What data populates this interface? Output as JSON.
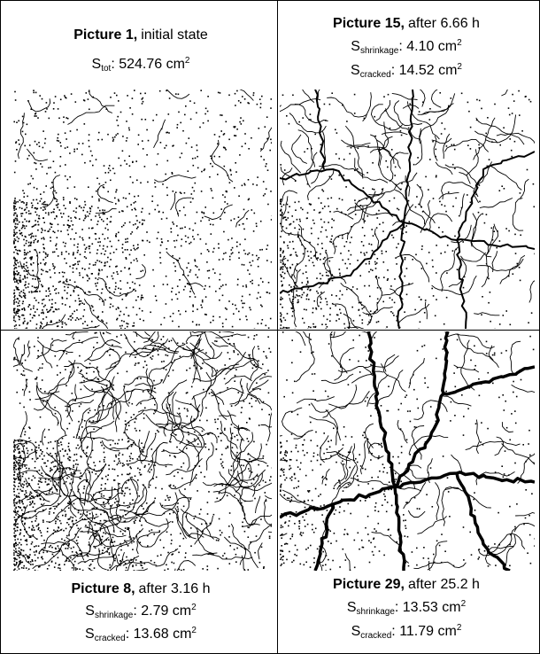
{
  "panels": [
    {
      "title": {
        "bold": "Picture 1,",
        "rest": "initial state"
      },
      "lines": [
        {
          "symbol": "S",
          "sub": "tot",
          "value": ": 524.76 cm",
          "sup": "2"
        }
      ]
    },
    {
      "title": {
        "bold": "Picture 15,",
        "rest": "after 6.66 h"
      },
      "lines": [
        {
          "symbol": "S",
          "sub": "shrinkage",
          "value": ": 4.10 cm",
          "sup": "2"
        },
        {
          "symbol": "S",
          "sub": "cracked",
          "value": ": 14.52 cm",
          "sup": "2"
        }
      ]
    },
    {
      "title": {
        "bold": "Picture 8,",
        "rest": "after 3.16 h"
      },
      "lines": [
        {
          "symbol": "S",
          "sub": "shrinkage",
          "value": ": 2.79 cm",
          "sup": "2"
        },
        {
          "symbol": "S",
          "sub": "cracked",
          "value": ": 13.68 cm",
          "sup": "2"
        }
      ]
    },
    {
      "title": {
        "bold": "Picture 29,",
        "rest": "after 25.2 h"
      },
      "lines": [
        {
          "symbol": "S",
          "sub": "shrinkage",
          "value": ": 13.53 cm",
          "sup": "2"
        },
        {
          "symbol": "S",
          "sub": "cracked",
          "value": ": 11.79 cm",
          "sup": "2"
        }
      ]
    }
  ]
}
